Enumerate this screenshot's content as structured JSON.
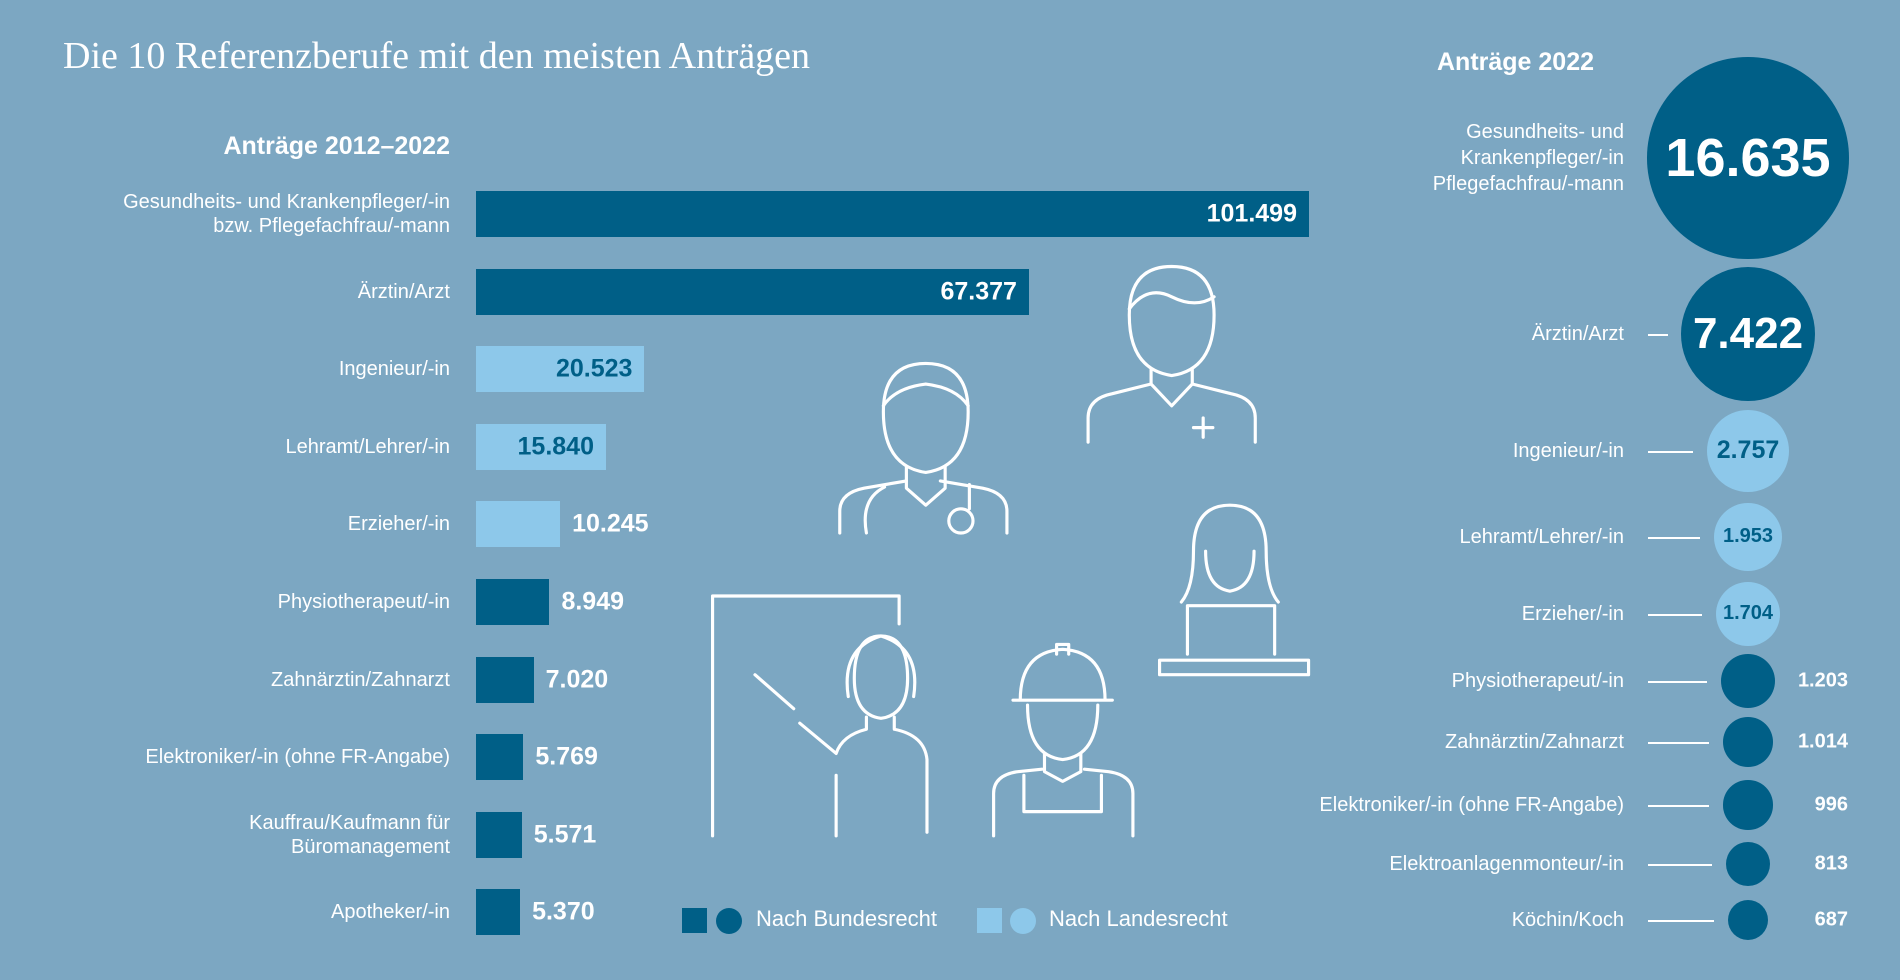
{
  "title": "Die 10 Referenzberufe mit den meisten Anträgen",
  "colors": {
    "background": "#7ca7c2",
    "bundesrecht": "#005f87",
    "landesrecht": "#8dc8ea"
  },
  "legend": [
    {
      "label": "Nach Bundesrecht",
      "color": "#005f87"
    },
    {
      "label": "Nach Landesrecht",
      "color": "#8dc8ea"
    }
  ],
  "chart_data": [
    {
      "type": "bar",
      "orientation": "horizontal",
      "title": "Anträge 2012–2022",
      "categories": [
        "Gesundheits- und Krankenpfleger/-in\nbzw. Pflegefachfrau/-mann",
        "Ärztin/Arzt",
        "Ingenieur/-in",
        "Lehramt/Lehrer/-in",
        "Erzieher/-in",
        "Physiotherapeut/-in",
        "Zahnärztin/Zahnarzt",
        "Elektroniker/-in (ohne FR-Angabe)",
        "Kauffrau/Kaufmann für\nBüromanagement",
        "Apotheker/-in"
      ],
      "values": [
        101499,
        67377,
        20523,
        15840,
        10245,
        8949,
        7020,
        5769,
        5571,
        5370
      ],
      "value_labels": [
        "101.499",
        "67.377",
        "20.523",
        "15.840",
        "10.245",
        "8.949",
        "7.020",
        "5.769",
        "5.571",
        "5.370"
      ],
      "group": [
        "Bundesrecht",
        "Bundesrecht",
        "Landesrecht",
        "Landesrecht",
        "Landesrecht",
        "Bundesrecht",
        "Bundesrecht",
        "Bundesrecht",
        "Bundesrecht",
        "Bundesrecht"
      ]
    },
    {
      "type": "bubble",
      "title": "Anträge 2022",
      "categories": [
        "Gesundheits- und\nKrankenpfleger/-in\nPflegefachfrau/-mann",
        "Ärztin/Arzt",
        "Ingenieur/-in",
        "Lehramt/Lehrer/-in",
        "Erzieher/-in",
        "Physiotherapeut/-in",
        "Zahnärztin/Zahnarzt",
        "Elektroniker/-in (ohne FR-Angabe)",
        "Elektroanlagenmonteur/-in",
        "Köchin/Koch"
      ],
      "values": [
        16635,
        7422,
        2757,
        1953,
        1704,
        1203,
        1014,
        996,
        813,
        687
      ],
      "value_labels": [
        "16.635",
        "7.422",
        "2.757",
        "1.953",
        "1.704",
        "1.203",
        "1.014",
        "996",
        "813",
        "687"
      ],
      "group": [
        "Bundesrecht",
        "Bundesrecht",
        "Landesrecht",
        "Landesrecht",
        "Landesrecht",
        "Bundesrecht",
        "Bundesrecht",
        "Bundesrecht",
        "Bundesrecht",
        "Bundesrecht"
      ]
    }
  ],
  "icons": [
    "doctor-icon",
    "nurse-icon",
    "teacher-icon",
    "construction-worker-icon",
    "office-worker-icon"
  ]
}
